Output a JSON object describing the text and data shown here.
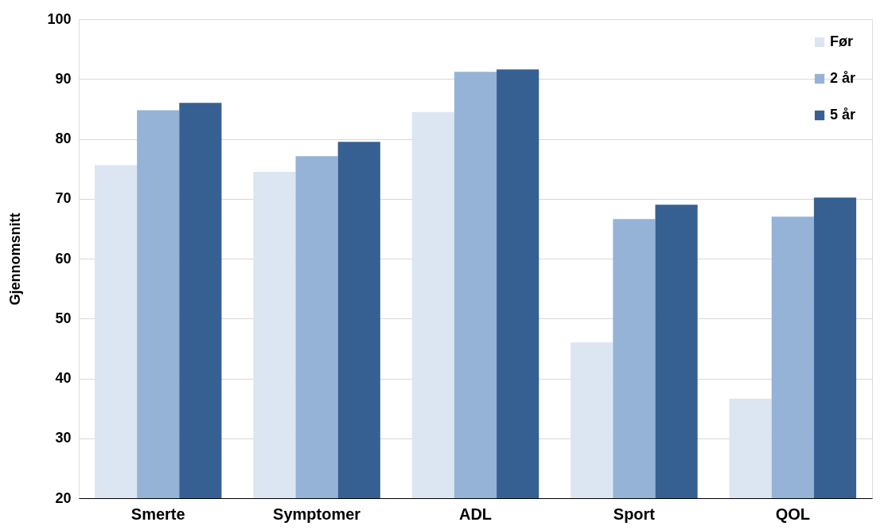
{
  "chart_data": {
    "type": "bar",
    "ylabel": "Gjennomsnitt",
    "categories": [
      "Smerte",
      "Symptomer",
      "ADL",
      "Sport",
      "QOL"
    ],
    "series": [
      {
        "name": "Før",
        "color": "#dce6f2",
        "values": [
          75.6,
          74.5,
          84.5,
          46.0,
          36.6
        ]
      },
      {
        "name": "2 år",
        "color": "#95b3d7",
        "values": [
          84.8,
          77.1,
          91.2,
          66.6,
          67.0
        ]
      },
      {
        "name": "5 år",
        "color": "#376092",
        "values": [
          86.0,
          79.5,
          91.6,
          69.0,
          70.2
        ]
      }
    ],
    "ylim": [
      20,
      100
    ],
    "yticks": [
      20,
      30,
      40,
      50,
      60,
      70,
      80,
      90,
      100
    ],
    "grid": "y",
    "legend": "top right"
  }
}
